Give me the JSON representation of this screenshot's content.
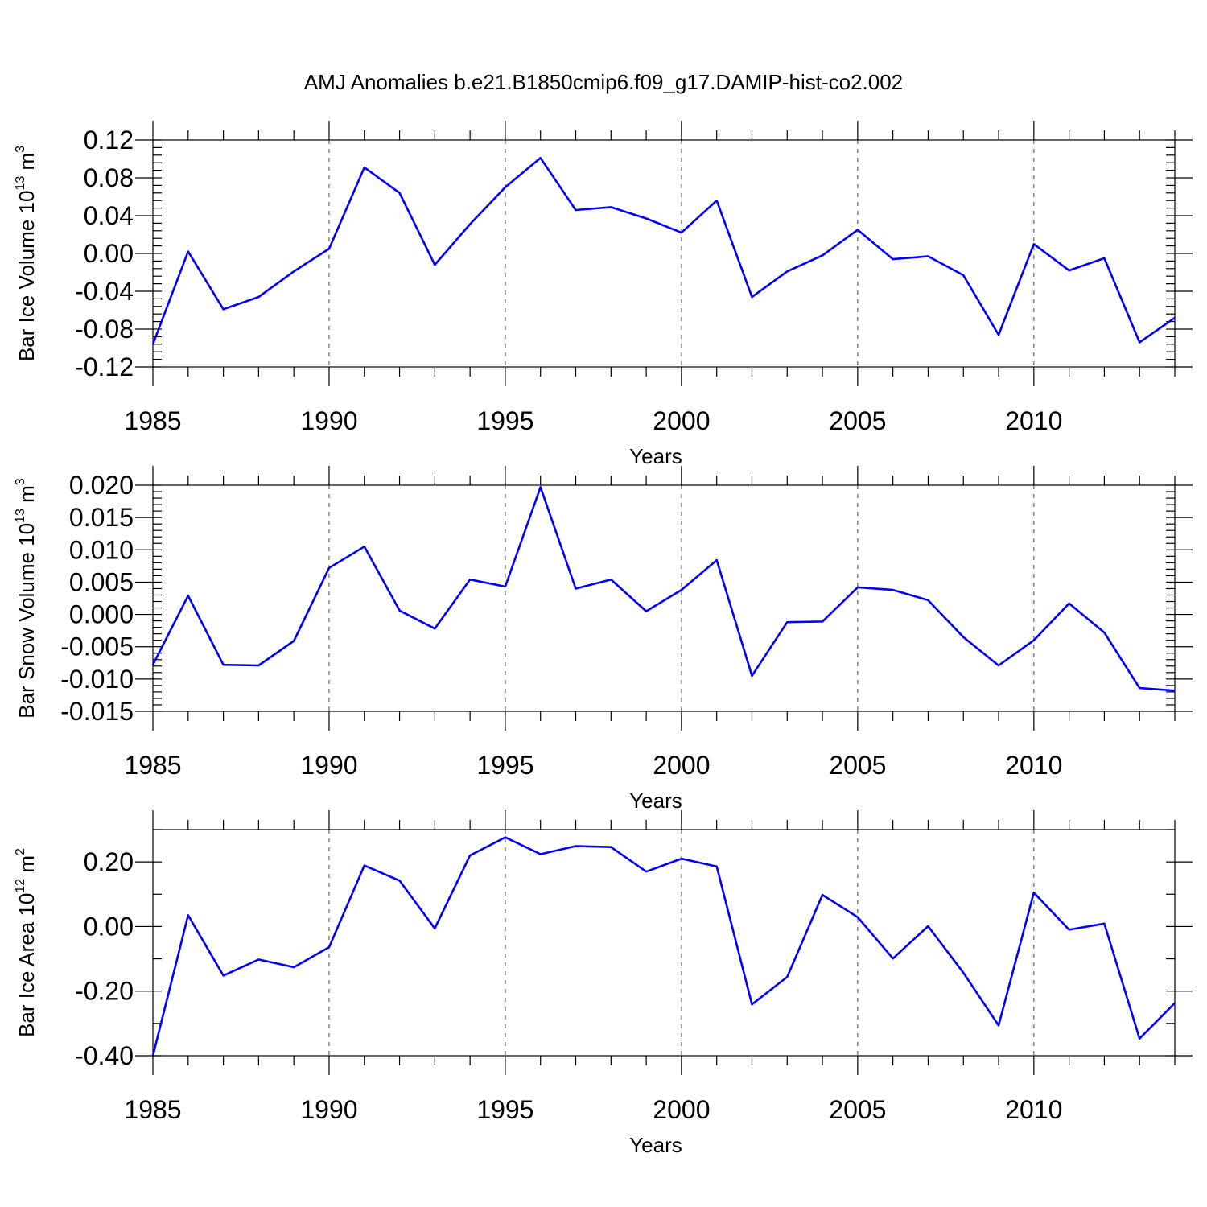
{
  "title": "AMJ Anomalies b.e21.B1850cmip6.f09_g17.DAMIP-hist-co2.002",
  "colors": {
    "series": "#0000ff",
    "frame": "#000000",
    "grid": "#666666"
  },
  "chart_data": [
    {
      "type": "line",
      "xlabel": "Years",
      "ylabel_main": "Bar Ice Volume 10",
      "ylabel_exp": "13",
      "ylabel_unit": " m",
      "ylabel_unit_exp": "3",
      "xlim": [
        1985,
        2014
      ],
      "ylim": [
        -0.12,
        0.12
      ],
      "x_ticks": [
        1985,
        1990,
        1995,
        2000,
        2005,
        2010
      ],
      "x_tick_labels": [
        "1985",
        "1990",
        "1995",
        "2000",
        "2005",
        "2010"
      ],
      "y_ticks": [
        -0.12,
        -0.08,
        -0.04,
        0.0,
        0.04,
        0.08,
        0.12
      ],
      "y_tick_labels": [
        "-0.12",
        "-0.08",
        "-0.04",
        "0.00",
        "0.04",
        "0.08",
        "0.12"
      ],
      "y_minor_step": 0.008,
      "grid": "x-dashed",
      "series": [
        {
          "x": [
            1985,
            1986,
            1987,
            1988,
            1989,
            1990,
            1991,
            1992,
            1993,
            1994,
            1995,
            1996,
            1997,
            1998,
            1999,
            2000,
            2001,
            2002,
            2003,
            2004,
            2005,
            2006,
            2007,
            2008,
            2009,
            2010,
            2011,
            2012,
            2013,
            2014
          ],
          "values": [
            -0.096,
            0.002,
            -0.059,
            -0.046,
            -0.019,
            0.005,
            0.091,
            0.064,
            -0.012,
            0.031,
            0.07,
            0.101,
            0.046,
            0.049,
            0.037,
            0.022,
            0.056,
            -0.046,
            -0.019,
            -0.002,
            0.025,
            -0.006,
            -0.003,
            -0.023,
            -0.086,
            0.01,
            -0.018,
            -0.005,
            -0.094,
            -0.068
          ]
        }
      ]
    },
    {
      "type": "line",
      "xlabel": "Years",
      "ylabel_main": "Bar Snow Volume 10",
      "ylabel_exp": "13",
      "ylabel_unit": " m",
      "ylabel_unit_exp": "3",
      "xlim": [
        1985,
        2014
      ],
      "ylim": [
        -0.015,
        0.02
      ],
      "x_ticks": [
        1985,
        1990,
        1995,
        2000,
        2005,
        2010
      ],
      "x_tick_labels": [
        "1985",
        "1990",
        "1995",
        "2000",
        "2005",
        "2010"
      ],
      "y_ticks": [
        -0.015,
        -0.01,
        -0.005,
        0.0,
        0.005,
        0.01,
        0.015,
        0.02
      ],
      "y_tick_labels": [
        "-0.015",
        "-0.010",
        "-0.005",
        "0.000",
        "0.005",
        "0.010",
        "0.015",
        "0.020"
      ],
      "y_minor_step": 0.001,
      "grid": "x-dashed",
      "series": [
        {
          "x": [
            1985,
            1986,
            1987,
            1988,
            1989,
            1990,
            1991,
            1992,
            1993,
            1994,
            1995,
            1996,
            1997,
            1998,
            1999,
            2000,
            2001,
            2002,
            2003,
            2004,
            2005,
            2006,
            2007,
            2008,
            2009,
            2010,
            2011,
            2012,
            2013,
            2014
          ],
          "values": [
            -0.0078,
            0.0029,
            -0.0078,
            -0.0079,
            -0.0041,
            0.0072,
            0.0105,
            0.0006,
            -0.0022,
            0.0054,
            0.0043,
            0.0197,
            0.004,
            0.0054,
            0.0005,
            0.0038,
            0.0084,
            -0.0095,
            -0.0012,
            -0.0011,
            0.0042,
            0.0038,
            0.0022,
            -0.0035,
            -0.0079,
            -0.004,
            0.0017,
            -0.0028,
            -0.0114,
            -0.0118
          ]
        }
      ]
    },
    {
      "type": "line",
      "xlabel": "Years",
      "ylabel_main": "Bar Ice Area 10",
      "ylabel_exp": "12",
      "ylabel_unit": " m",
      "ylabel_unit_exp": "2",
      "xlim": [
        1985,
        2014
      ],
      "ylim": [
        -0.4,
        0.3
      ],
      "x_ticks": [
        1985,
        1990,
        1995,
        2000,
        2005,
        2010
      ],
      "x_tick_labels": [
        "1985",
        "1990",
        "1995",
        "2000",
        "2005",
        "2010"
      ],
      "y_ticks": [
        -0.4,
        -0.2,
        0.0,
        0.2
      ],
      "y_tick_labels": [
        "-0.40",
        "-0.20",
        "0.00",
        "0.20"
      ],
      "y_minor_step": 0.1,
      "grid": "x-dashed",
      "series": [
        {
          "x": [
            1985,
            1986,
            1987,
            1988,
            1989,
            1990,
            1991,
            1992,
            1993,
            1994,
            1995,
            1996,
            1997,
            1998,
            1999,
            2000,
            2001,
            2002,
            2003,
            2004,
            2005,
            2006,
            2007,
            2008,
            2009,
            2010,
            2011,
            2012,
            2013,
            2014
          ],
          "values": [
            -0.4,
            0.035,
            -0.152,
            -0.102,
            -0.126,
            -0.064,
            0.189,
            0.142,
            -0.006,
            0.22,
            0.276,
            0.224,
            0.249,
            0.246,
            0.17,
            0.21,
            0.186,
            -0.241,
            -0.156,
            0.098,
            0.029,
            -0.099,
            0.001,
            -0.143,
            -0.306,
            0.105,
            -0.01,
            0.009,
            -0.347,
            -0.237
          ]
        }
      ]
    }
  ]
}
